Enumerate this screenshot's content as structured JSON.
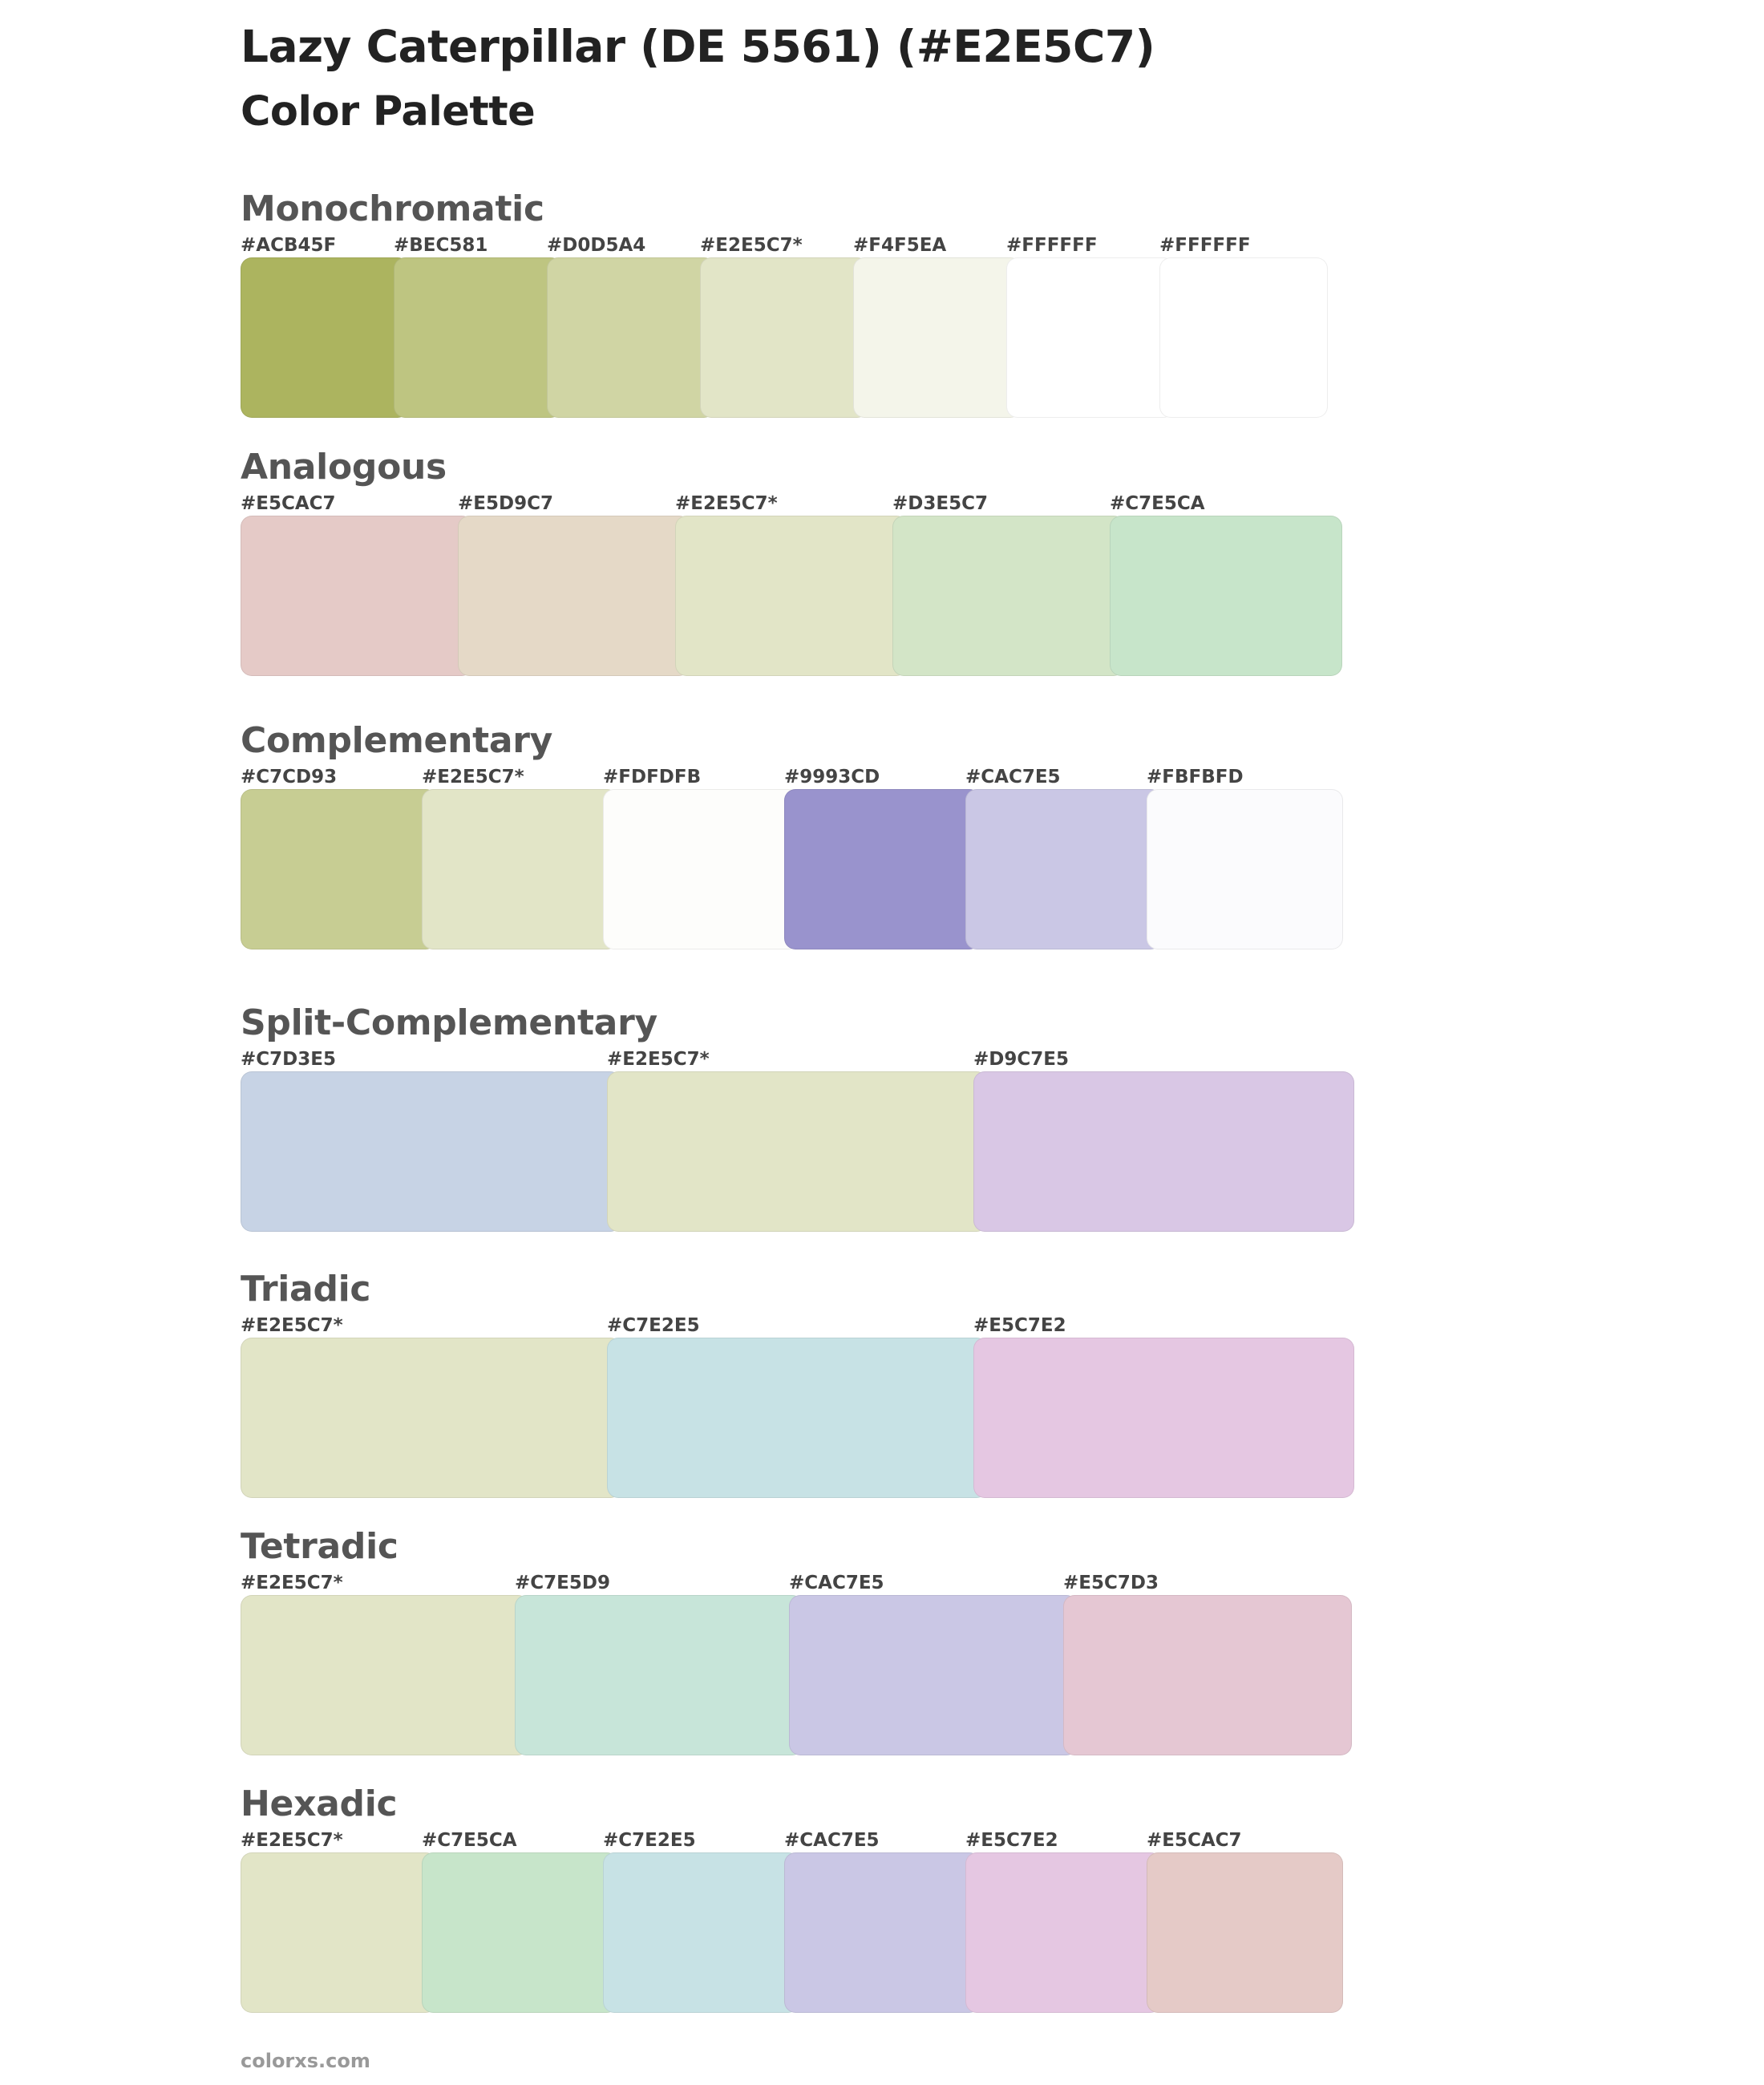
{
  "title": "Lazy Caterpillar (DE 5561) (#E2E5C7)",
  "subtitle": "Color Palette",
  "sections": [
    {
      "name": "Monochromatic",
      "colors": [
        {
          "label": "#ACB45F",
          "hex": "#ACB45F"
        },
        {
          "label": "#BEC581",
          "hex": "#BEC581"
        },
        {
          "label": "#D0D5A4",
          "hex": "#D0D5A4"
        },
        {
          "label": "#E2E5C7*",
          "hex": "#E2E5C7"
        },
        {
          "label": "#F4F5EA",
          "hex": "#F4F5EA"
        },
        {
          "label": "#FFFFFF",
          "hex": "#FFFFFF"
        },
        {
          "label": "#FFFFFF",
          "hex": "#FFFFFF"
        }
      ]
    },
    {
      "name": "Analogous",
      "colors": [
        {
          "label": "#E5CAC7",
          "hex": "#E5CAC7"
        },
        {
          "label": "#E5D9C7",
          "hex": "#E5D9C7"
        },
        {
          "label": "#E2E5C7*",
          "hex": "#E2E5C7"
        },
        {
          "label": "#D3E5C7",
          "hex": "#D3E5C7"
        },
        {
          "label": "#C7E5CA",
          "hex": "#C7E5CA"
        }
      ]
    },
    {
      "name": "Complementary",
      "colors": [
        {
          "label": "#C7CD93",
          "hex": "#C7CD93"
        },
        {
          "label": "#E2E5C7*",
          "hex": "#E2E5C7"
        },
        {
          "label": "#FDFDFB",
          "hex": "#FDFDFB"
        },
        {
          "label": "#9993CD",
          "hex": "#9993CD"
        },
        {
          "label": "#CAC7E5",
          "hex": "#CAC7E5"
        },
        {
          "label": "#FBFBFD",
          "hex": "#FBFBFD"
        }
      ]
    },
    {
      "name": "Split-Complementary",
      "colors": [
        {
          "label": "#C7D3E5",
          "hex": "#C7D3E5"
        },
        {
          "label": "#E2E5C7*",
          "hex": "#E2E5C7"
        },
        {
          "label": "#D9C7E5",
          "hex": "#D9C7E5"
        }
      ]
    },
    {
      "name": "Triadic",
      "colors": [
        {
          "label": "#E2E5C7*",
          "hex": "#E2E5C7"
        },
        {
          "label": "#C7E2E5",
          "hex": "#C7E2E5"
        },
        {
          "label": "#E5C7E2",
          "hex": "#E5C7E2"
        }
      ]
    },
    {
      "name": "Tetradic",
      "colors": [
        {
          "label": "#E2E5C7*",
          "hex": "#E2E5C7"
        },
        {
          "label": "#C7E5D9",
          "hex": "#C7E5D9"
        },
        {
          "label": "#CAC7E5",
          "hex": "#CAC7E5"
        },
        {
          "label": "#E5C7D3",
          "hex": "#E5C7D3"
        }
      ]
    },
    {
      "name": "Hexadic",
      "colors": [
        {
          "label": "#E2E5C7*",
          "hex": "#E2E5C7"
        },
        {
          "label": "#C7E5CA",
          "hex": "#C7E5CA"
        },
        {
          "label": "#C7E2E5",
          "hex": "#C7E2E5"
        },
        {
          "label": "#CAC7E5",
          "hex": "#CAC7E5"
        },
        {
          "label": "#E5C7E2",
          "hex": "#E5C7E2"
        },
        {
          "label": "#E5CAC7",
          "hex": "#E5CAC7"
        }
      ]
    }
  ],
  "footer": "colorxs.com"
}
